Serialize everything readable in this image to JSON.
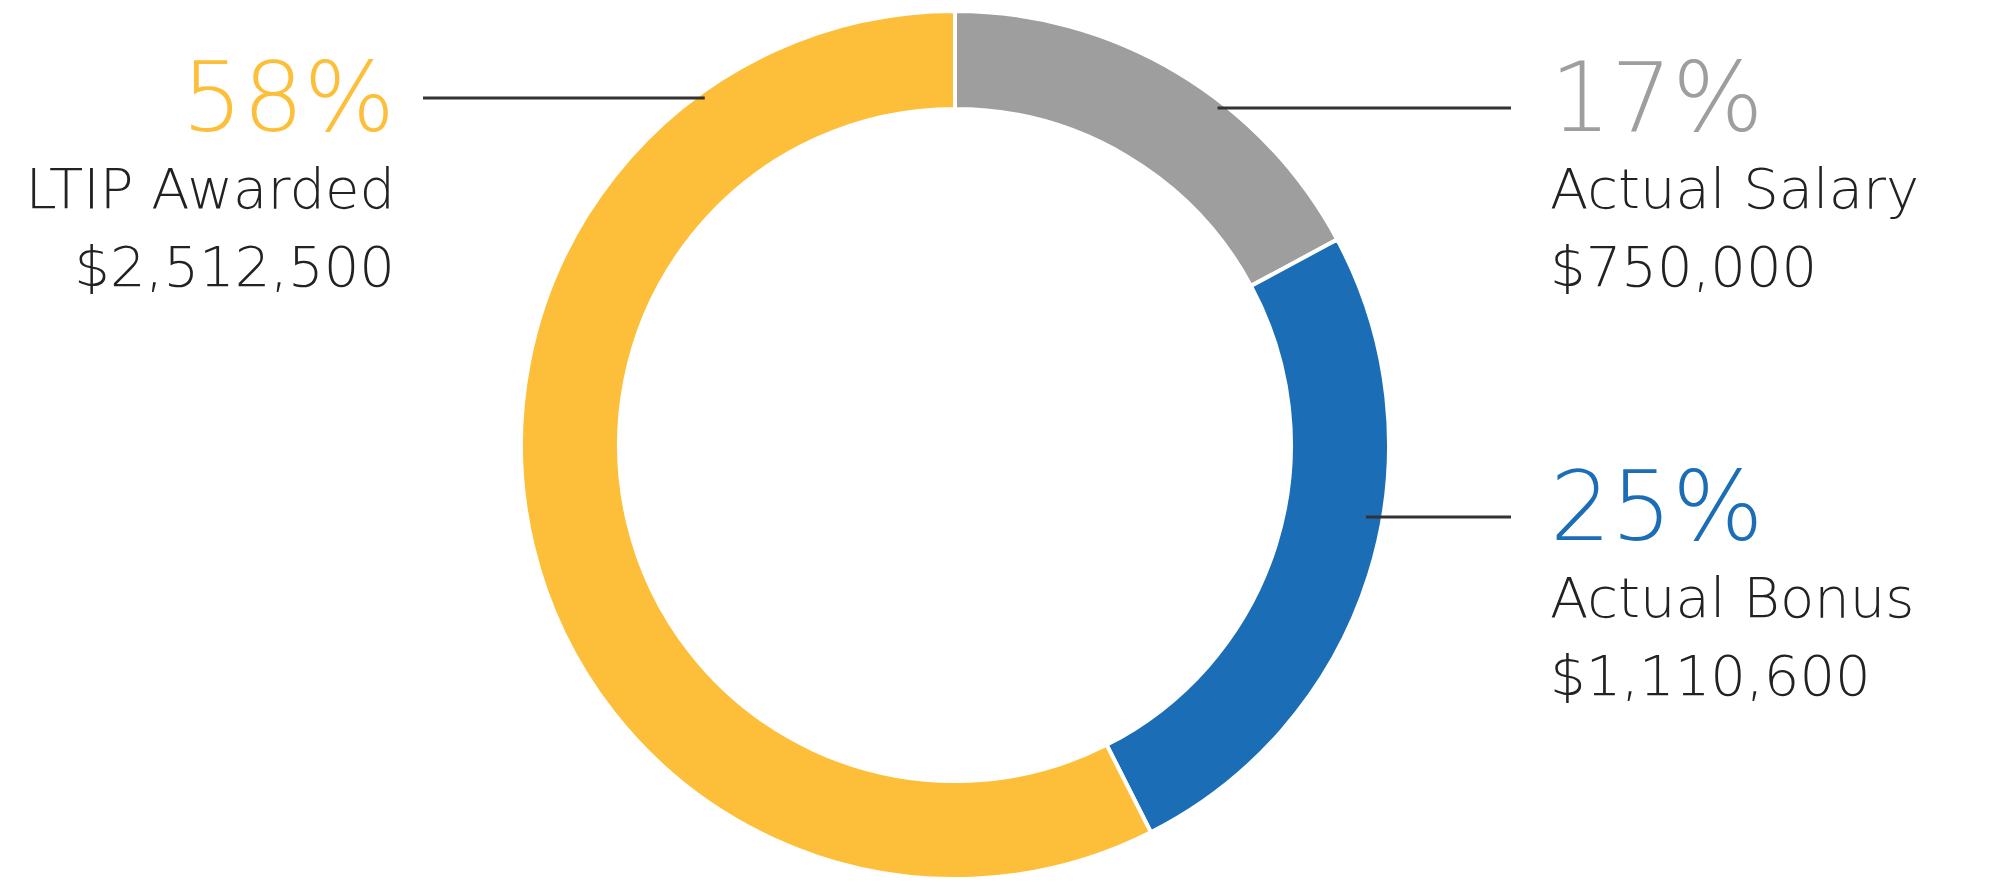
{
  "chart_data": {
    "type": "donut",
    "categories": [
      "Actual Salary",
      "Actual Bonus",
      "LTIP Awarded"
    ],
    "values": [
      750000,
      1110600,
      2512500
    ],
    "colors": [
      "#9e9e9e",
      "#1b6eb6",
      "#fdbf3a"
    ],
    "value_labels": [
      "$750,000",
      "$1,110,600",
      "$2,512,500"
    ],
    "annotations": [
      "17%",
      "25%",
      "58%"
    ],
    "legend": false
  }
}
